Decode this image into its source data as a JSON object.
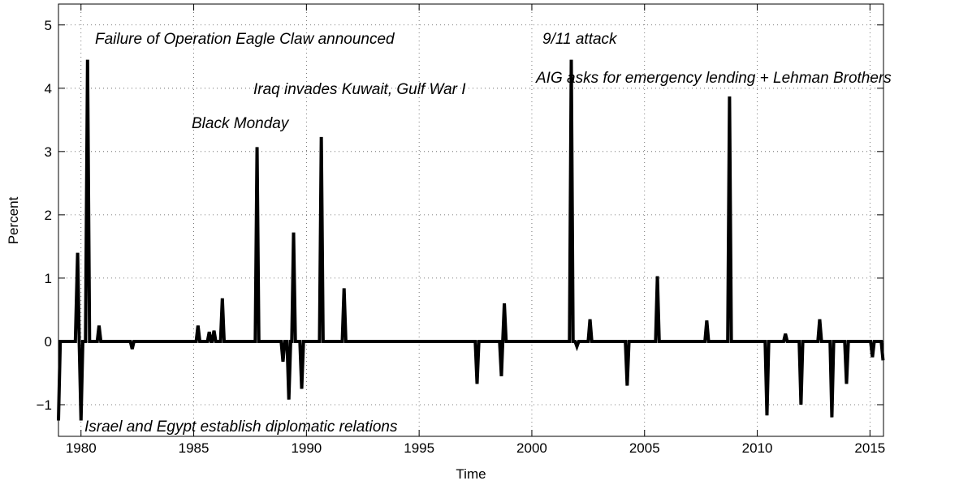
{
  "chart_data": {
    "type": "line",
    "x_label": "Time",
    "y_label": "Percent",
    "xlim": [
      1979,
      2015.6
    ],
    "ylim": [
      -1.5,
      5.33
    ],
    "xticks": [
      1980,
      1985,
      1990,
      1995,
      2000,
      2005,
      2010,
      2015
    ],
    "yticks": [
      {
        "value": -1,
        "label": "−1"
      },
      0,
      1,
      2,
      3,
      4,
      5
    ],
    "grid": true,
    "color": "#000000",
    "x": [
      1979.0,
      1979.08,
      1979.75,
      1979.85,
      1979.92,
      1980.0,
      1980.08,
      1980.2,
      1980.29,
      1980.38,
      1980.72,
      1980.8,
      1980.88,
      1982.19,
      1982.27,
      1982.35,
      1985.11,
      1985.19,
      1985.27,
      1985.61,
      1985.69,
      1985.77,
      1985.82,
      1985.9,
      1985.98,
      1986.19,
      1986.27,
      1986.35,
      1987.73,
      1987.81,
      1987.89,
      1988.88,
      1988.96,
      1989.04,
      1989.14,
      1989.22,
      1989.3,
      1989.35,
      1989.43,
      1989.51,
      1989.71,
      1989.79,
      1989.87,
      1990.58,
      1990.66,
      1990.74,
      1991.59,
      1991.67,
      1991.75,
      1997.49,
      1997.57,
      1997.65,
      1998.57,
      1998.65,
      1998.71,
      1998.78,
      1998.86,
      2001.67,
      2001.75,
      2001.83,
      2001.92,
      2002.0,
      2002.08,
      2002.5,
      2002.58,
      2002.66,
      2004.15,
      2004.23,
      2004.31,
      2005.49,
      2005.57,
      2005.65,
      2007.68,
      2007.76,
      2007.84,
      2008.69,
      2008.77,
      2008.85,
      2010.35,
      2010.43,
      2010.51,
      2011.17,
      2011.25,
      2011.33,
      2011.86,
      2011.94,
      2012.02,
      2012.69,
      2012.77,
      2012.85,
      2013.23,
      2013.31,
      2013.39,
      2013.88,
      2013.96,
      2014.04,
      2015.03,
      2015.11,
      2015.19,
      2015.5,
      2015.58
    ],
    "values": [
      -1.25,
      0,
      0,
      1.4,
      0,
      -1.25,
      0,
      0,
      4.45,
      0,
      0,
      0.25,
      0,
      0,
      -0.12,
      0,
      0,
      0.25,
      0,
      0,
      0.15,
      0,
      0,
      0.17,
      0,
      0,
      0.68,
      0,
      0,
      3.07,
      0,
      0,
      -0.32,
      0,
      0,
      -0.92,
      0,
      0,
      1.72,
      0,
      0,
      -0.75,
      0,
      0,
      3.23,
      0,
      0,
      0.84,
      0,
      0,
      -0.67,
      0,
      0,
      -0.55,
      0,
      0.6,
      0,
      0,
      4.45,
      0,
      0,
      -0.08,
      0,
      0,
      0.35,
      0,
      0,
      -0.7,
      0,
      0,
      1.03,
      0,
      0,
      0.33,
      0,
      0,
      3.87,
      0,
      0,
      -1.17,
      0,
      0,
      0.12,
      0,
      0,
      -1.0,
      0,
      0,
      0.35,
      0,
      0,
      -1.2,
      0,
      0,
      -0.67,
      0,
      0,
      -0.25,
      0,
      0,
      -0.3
    ],
    "annotations": [
      "Failure of Operation Eagle Claw announced",
      "9/11 attack",
      "Iraq invades Kuwait, Gulf War I",
      "AIG asks for emergency lending + Lehman Brothers",
      "Black Monday",
      "Israel and Egypt establish diplomatic relations"
    ]
  }
}
